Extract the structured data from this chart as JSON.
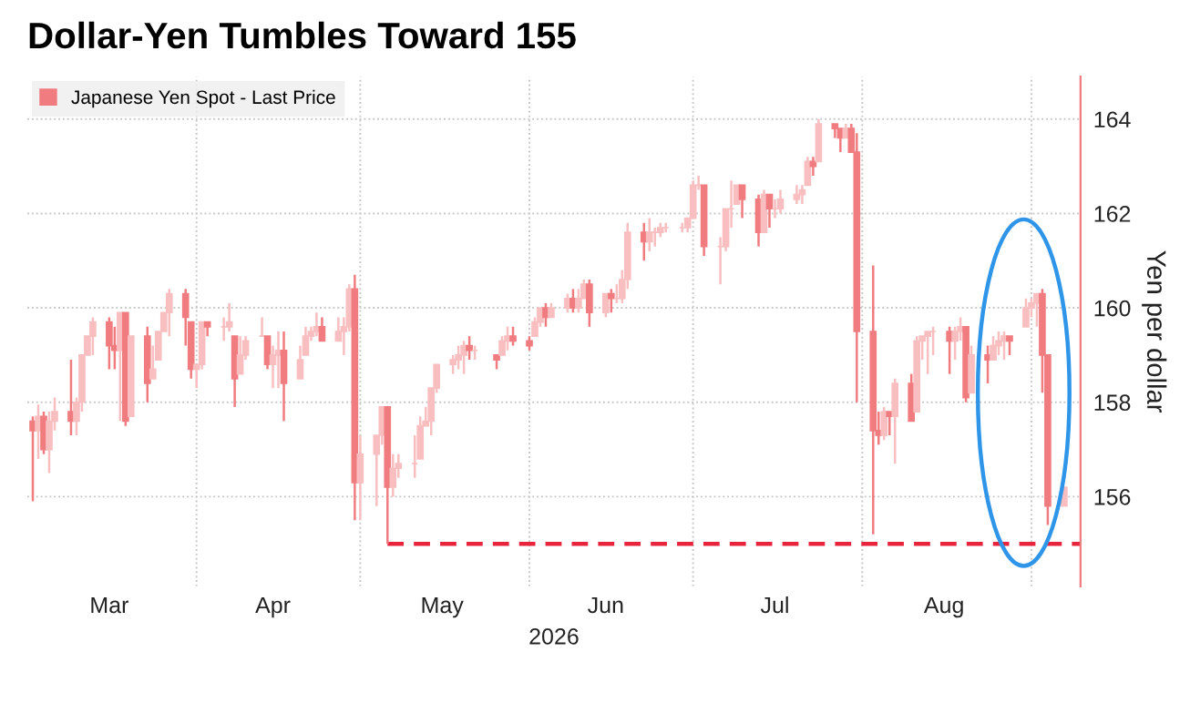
{
  "chart_data": {
    "type": "candlestick",
    "title": "Dollar-Yen Tumbles Toward 155",
    "xlabel": "2026",
    "ylabel": "Yen per dollar",
    "x": [
      "2026-03-02",
      "2026-03-03",
      "2026-03-04",
      "2026-03-05",
      "2026-03-06",
      "2026-03-09",
      "2026-03-10",
      "2026-03-11",
      "2026-03-12",
      "2026-03-13",
      "2026-03-16",
      "2026-03-17",
      "2026-03-18",
      "2026-03-19",
      "2026-03-20",
      "2026-03-23",
      "2026-03-24",
      "2026-03-25",
      "2026-03-26",
      "2026-03-27",
      "2026-03-30",
      "2026-03-31",
      "2026-04-01",
      "2026-04-02",
      "2026-04-03",
      "2026-04-06",
      "2026-04-07",
      "2026-04-08",
      "2026-04-09",
      "2026-04-10",
      "2026-04-13",
      "2026-04-14",
      "2026-04-15",
      "2026-04-16",
      "2026-04-17",
      "2026-04-20",
      "2026-04-21",
      "2026-04-22",
      "2026-04-23",
      "2026-04-24",
      "2026-04-27",
      "2026-04-28",
      "2026-04-29",
      "2026-04-30",
      "2026-05-01",
      "2026-05-04",
      "2026-05-05",
      "2026-05-06",
      "2026-05-07",
      "2026-05-08",
      "2026-05-11",
      "2026-05-12",
      "2026-05-13",
      "2026-05-14",
      "2026-05-15",
      "2026-05-18",
      "2026-05-19",
      "2026-05-20",
      "2026-05-21",
      "2026-05-22",
      "2026-05-26",
      "2026-05-27",
      "2026-05-28",
      "2026-05-29",
      "2026-06-01",
      "2026-06-02",
      "2026-06-03",
      "2026-06-04",
      "2026-06-05",
      "2026-06-08",
      "2026-06-09",
      "2026-06-10",
      "2026-06-11",
      "2026-06-12",
      "2026-06-15",
      "2026-06-16",
      "2026-06-17",
      "2026-06-18",
      "2026-06-19",
      "2026-06-22",
      "2026-06-23",
      "2026-06-24",
      "2026-06-25",
      "2026-06-26",
      "2026-06-29",
      "2026-06-30",
      "2026-07-01",
      "2026-07-02",
      "2026-07-03",
      "2026-07-06",
      "2026-07-07",
      "2026-07-08",
      "2026-07-09",
      "2026-07-10",
      "2026-07-13",
      "2026-07-14",
      "2026-07-15",
      "2026-07-16",
      "2026-07-17",
      "2026-07-20",
      "2026-07-21",
      "2026-07-22",
      "2026-07-23",
      "2026-07-24",
      "2026-07-27",
      "2026-07-28",
      "2026-07-29",
      "2026-07-30",
      "2026-07-31",
      "2026-08-03",
      "2026-08-04",
      "2026-08-05",
      "2026-08-06",
      "2026-08-07",
      "2026-08-10",
      "2026-08-11",
      "2026-08-12",
      "2026-08-13",
      "2026-08-14",
      "2026-08-17",
      "2026-08-18",
      "2026-08-19",
      "2026-08-20",
      "2026-08-21",
      "2026-08-24",
      "2026-08-25",
      "2026-08-26",
      "2026-08-27",
      "2026-08-28",
      "2026-08-31",
      "2026-09-01",
      "2026-09-02",
      "2026-09-03",
      "2026-09-04",
      "2026-09-07"
    ],
    "series": [
      {
        "name": "Japanese Yen Spot - Last Price",
        "color": "#f07c80",
        "colors": [
          "#f07c80",
          "#f8bec0",
          "#f07c80",
          "#f8bec0",
          "#f8bec0",
          "#f07c80",
          "#f8bec0",
          "#f8bec0",
          "#f8bec0",
          "#f8bec0",
          "#f07c80",
          "#f07c80",
          "#f8bec0",
          "#f07c80",
          "#f8bec0",
          "#f07c80",
          "#f8bec0",
          "#f8bec0",
          "#f8bec0",
          "#f8bec0",
          "#f07c80",
          "#f07c80",
          "#f8bec0",
          "#f8bec0",
          "#f07c80",
          "#f8bec0",
          "#f8bec0",
          "#f07c80",
          "#f8bec0",
          "#f8bec0",
          "#f8bec0",
          "#f07c80",
          "#f8bec0",
          "#f8bec0",
          "#f07c80",
          "#f8bec0",
          "#f8bec0",
          "#f8bec0",
          "#f8bec0",
          "#f07c80",
          "#f8bec0",
          "#f8bec0",
          "#f8bec0",
          "#f07c80",
          "#f8bec0",
          "#f8bec0",
          "#f8bec0",
          "#f07c80",
          "#f8bec0",
          "#f8bec0",
          "#f8bec0",
          "#f8bec0",
          "#f8bec0",
          "#f8bec0",
          "#f8bec0",
          "#f8bec0",
          "#f8bec0",
          "#f8bec0",
          "#f07c80",
          "#f8bec0",
          "#f07c80",
          "#f8bec0",
          "#f8bec0",
          "#f07c80",
          "#f07c80",
          "#f8bec0",
          "#f8bec0",
          "#f07c80",
          "#f8bec0",
          "#f8bec0",
          "#f07c80",
          "#f8bec0",
          "#f8bec0",
          "#f07c80",
          "#f8bec0",
          "#f07c80",
          "#f8bec0",
          "#f8bec0",
          "#f8bec0",
          "#f07c80",
          "#f8bec0",
          "#f8bec0",
          "#f8bec0",
          "#f8bec0",
          "#f8bec0",
          "#f8bec0",
          "#f8bec0",
          "#f8bec0",
          "#f07c80",
          "#f8bec0",
          "#f8bec0",
          "#f8bec0",
          "#f8bec0",
          "#f07c80",
          "#f07c80",
          "#f8bec0",
          "#f07c80",
          "#f8bec0",
          "#f8bec0",
          "#f8bec0",
          "#f8bec0",
          "#f8bec0",
          "#f07c80",
          "#f8bec0",
          "#f07c80",
          "#f07c80",
          "#f8bec0",
          "#f07c80",
          "#f07c80",
          "#f07c80",
          "#f07c80",
          "#f8bec0",
          "#f07c80",
          "#f8bec0",
          "#f07c80",
          "#f8bec0",
          "#f8bec0",
          "#f8bec0",
          "#f8bec0",
          "#f07c80",
          "#f8bec0",
          "#f8bec0",
          "#f07c80",
          "#f8bec0",
          "#f07c80",
          "#f8bec0",
          "#f8bec0",
          "#f8bec0",
          "#f07c80",
          "#f8bec0",
          "#f8bec0",
          "#f8bec0",
          "#f07c80",
          "#f07c80",
          "#f8bec0"
        ],
        "ohlc": [
          [
            157.6,
            157.7,
            155.9,
            157.4
          ],
          [
            157.4,
            157.95,
            156.8,
            157.7
          ],
          [
            157.7,
            157.8,
            156.9,
            157.0
          ],
          [
            157.0,
            157.8,
            156.5,
            157.6
          ],
          [
            157.6,
            158.1,
            157.4,
            157.8
          ],
          [
            157.8,
            158.9,
            157.3,
            157.6
          ],
          [
            157.6,
            158.1,
            157.3,
            158.0
          ],
          [
            158.0,
            159.0,
            157.8,
            159.0
          ],
          [
            159.0,
            159.4,
            159.0,
            159.4
          ],
          [
            159.4,
            159.8,
            159.0,
            159.7
          ],
          [
            159.7,
            159.8,
            158.7,
            159.2
          ],
          [
            159.2,
            159.6,
            158.7,
            159.1
          ],
          [
            159.1,
            159.9,
            157.6,
            159.9
          ],
          [
            159.9,
            159.9,
            157.5,
            157.6
          ],
          [
            157.7,
            159.4,
            157.7,
            159.4
          ],
          [
            159.4,
            159.6,
            158.0,
            158.4
          ],
          [
            158.5,
            159.2,
            158.5,
            158.7
          ],
          [
            158.9,
            159.5,
            158.9,
            159.5
          ],
          [
            159.5,
            159.9,
            159.5,
            159.9
          ],
          [
            159.9,
            160.4,
            159.4,
            160.3
          ],
          [
            160.3,
            160.4,
            159.2,
            159.8
          ],
          [
            159.7,
            159.7,
            158.5,
            158.7
          ],
          [
            158.7,
            158.8,
            158.3,
            158.8
          ],
          [
            158.8,
            159.7,
            158.7,
            159.7
          ],
          [
            159.7,
            159.7,
            159.4,
            159.6
          ],
          [
            159.6,
            159.8,
            159.3,
            159.6
          ],
          [
            159.6,
            160.1,
            159.5,
            159.7
          ],
          [
            159.4,
            159.4,
            157.9,
            158.5
          ],
          [
            158.6,
            159.4,
            158.6,
            159.0
          ],
          [
            159.0,
            159.4,
            158.9,
            159.3
          ],
          [
            159.4,
            159.8,
            159.4,
            159.4
          ],
          [
            159.4,
            159.4,
            158.7,
            158.8
          ],
          [
            158.8,
            159.2,
            158.3,
            159.0
          ],
          [
            159.0,
            159.5,
            158.3,
            159.1
          ],
          [
            159.1,
            159.5,
            157.6,
            158.4
          ],
          [
            158.5,
            159.2,
            158.5,
            158.9
          ],
          [
            159.0,
            159.6,
            159.0,
            159.4
          ],
          [
            159.4,
            159.6,
            159.3,
            159.5
          ],
          [
            159.5,
            159.9,
            159.4,
            159.6
          ],
          [
            159.6,
            159.8,
            159.3,
            159.3
          ],
          [
            159.3,
            159.8,
            159.3,
            159.5
          ],
          [
            159.5,
            159.8,
            159.0,
            159.6
          ],
          [
            159.6,
            160.5,
            159.5,
            160.4
          ],
          [
            160.4,
            160.7,
            155.5,
            156.3
          ],
          [
            156.3,
            157.3,
            155.5,
            156.9
          ],
          [
            156.9,
            157.3,
            155.8,
            157.3
          ],
          [
            157.3,
            157.9,
            157.1,
            157.9
          ],
          [
            157.9,
            157.9,
            155.0,
            156.2
          ],
          [
            156.2,
            156.9,
            156.0,
            156.6
          ],
          [
            156.6,
            156.9,
            156.4,
            156.7
          ],
          [
            156.7,
            157.3,
            156.4,
            156.7
          ],
          [
            156.8,
            157.7,
            156.8,
            157.5
          ],
          [
            157.5,
            157.9,
            157.5,
            157.6
          ],
          [
            157.6,
            158.3,
            157.3,
            158.3
          ],
          [
            158.3,
            158.8,
            158.2,
            158.8
          ],
          [
            158.8,
            159.0,
            158.6,
            158.9
          ],
          [
            158.9,
            159.2,
            158.7,
            159.0
          ],
          [
            159.0,
            159.3,
            158.6,
            159.2
          ],
          [
            159.2,
            159.4,
            158.9,
            159.1
          ],
          [
            159.1,
            159.2,
            158.9,
            159.1
          ],
          [
            159.0,
            159.0,
            158.7,
            158.9
          ],
          [
            159.0,
            159.4,
            159.0,
            159.3
          ],
          [
            159.3,
            159.6,
            159.1,
            159.4
          ],
          [
            159.4,
            159.6,
            159.2,
            159.3
          ],
          [
            159.3,
            159.4,
            159.1,
            159.2
          ],
          [
            159.4,
            159.8,
            159.4,
            159.7
          ],
          [
            159.7,
            160.0,
            159.6,
            160.0
          ],
          [
            160.0,
            160.1,
            159.6,
            159.8
          ],
          [
            159.8,
            160.1,
            159.8,
            160.0
          ],
          [
            160.0,
            160.3,
            159.9,
            160.2
          ],
          [
            160.2,
            160.4,
            159.9,
            160.0
          ],
          [
            160.0,
            160.4,
            159.9,
            160.2
          ],
          [
            160.2,
            160.6,
            160.2,
            160.5
          ],
          [
            160.5,
            160.6,
            159.6,
            159.9
          ],
          [
            159.9,
            160.3,
            159.8,
            160.3
          ],
          [
            160.3,
            160.4,
            159.9,
            160.2
          ],
          [
            160.2,
            160.5,
            160.1,
            160.2
          ],
          [
            160.2,
            160.8,
            160.1,
            160.6
          ],
          [
            160.6,
            161.8,
            160.4,
            161.6
          ],
          [
            161.6,
            161.8,
            161.0,
            161.4
          ],
          [
            161.4,
            161.9,
            161.2,
            161.6
          ],
          [
            161.6,
            161.7,
            161.3,
            161.6
          ],
          [
            161.6,
            161.8,
            161.5,
            161.7
          ],
          [
            161.7,
            161.8,
            161.6,
            161.7
          ],
          [
            161.7,
            161.8,
            161.6,
            161.7
          ],
          [
            161.7,
            161.9,
            161.6,
            161.9
          ],
          [
            161.9,
            162.7,
            161.9,
            162.6
          ],
          [
            162.6,
            162.8,
            162.5,
            162.6
          ],
          [
            162.6,
            162.6,
            161.1,
            161.3
          ],
          [
            161.3,
            161.5,
            160.5,
            161.3
          ],
          [
            161.3,
            162.1,
            161.2,
            162.1
          ],
          [
            162.1,
            162.7,
            161.7,
            162.1
          ],
          [
            162.2,
            162.6,
            162.2,
            162.6
          ],
          [
            162.6,
            162.6,
            161.9,
            162.3
          ],
          [
            162.3,
            162.4,
            161.3,
            161.6
          ],
          [
            161.6,
            162.5,
            161.6,
            162.4
          ],
          [
            162.4,
            162.4,
            161.7,
            162.1
          ],
          [
            162.1,
            162.3,
            161.9,
            162.1
          ],
          [
            162.1,
            162.5,
            162.0,
            162.3
          ],
          [
            162.3,
            162.6,
            162.2,
            162.4
          ],
          [
            162.4,
            162.6,
            162.2,
            162.5
          ],
          [
            162.6,
            163.2,
            162.6,
            163.1
          ],
          [
            163.1,
            163.2,
            162.8,
            163.0
          ],
          [
            163.1,
            164.0,
            163.1,
            163.9
          ],
          [
            163.9,
            163.9,
            163.6,
            163.8
          ],
          [
            163.8,
            163.8,
            163.3,
            163.6
          ],
          [
            163.6,
            163.9,
            163.6,
            163.8
          ],
          [
            163.8,
            163.9,
            163.3,
            163.3
          ],
          [
            163.3,
            163.7,
            158.0,
            159.5
          ],
          [
            159.5,
            160.9,
            155.2,
            157.4
          ],
          [
            157.4,
            157.8,
            157.1,
            157.3
          ],
          [
            157.3,
            157.9,
            157.2,
            157.8
          ],
          [
            157.8,
            157.8,
            157.3,
            157.7
          ],
          [
            157.7,
            158.5,
            156.7,
            158.4
          ],
          [
            158.4,
            158.6,
            157.6,
            157.6
          ],
          [
            157.8,
            159.4,
            157.8,
            159.3
          ],
          [
            159.3,
            159.4,
            158.9,
            159.4
          ],
          [
            159.4,
            159.5,
            158.6,
            159.5
          ],
          [
            159.5,
            159.6,
            159.0,
            159.5
          ],
          [
            159.5,
            159.6,
            158.6,
            159.3
          ],
          [
            159.3,
            159.6,
            158.9,
            159.5
          ],
          [
            159.5,
            159.8,
            159.3,
            159.6
          ],
          [
            159.6,
            159.6,
            158.0,
            158.1
          ],
          [
            158.2,
            159.2,
            158.2,
            159.0
          ],
          [
            159.0,
            159.2,
            158.4,
            158.9
          ],
          [
            158.9,
            159.4,
            158.9,
            159.2
          ],
          [
            159.2,
            159.5,
            159.0,
            159.3
          ],
          [
            159.3,
            159.5,
            158.9,
            159.4
          ],
          [
            159.4,
            159.4,
            159.0,
            159.3
          ],
          [
            159.6,
            160.2,
            159.6,
            160.0
          ],
          [
            160.0,
            160.2,
            159.8,
            160.1
          ],
          [
            160.1,
            160.3,
            159.6,
            160.3
          ],
          [
            160.3,
            160.4,
            158.2,
            159.0
          ],
          [
            159.0,
            159.0,
            155.4,
            155.8
          ],
          [
            155.8,
            156.2,
            155.8,
            156.2
          ]
        ]
      },
      {
        "type": "line",
        "color": "#e8243c",
        "line_style": "dashed",
        "x": [
          "2026-05-06",
          "2026-09-10"
        ],
        "values": [
          155,
          155
        ]
      }
    ],
    "xlim": [
      "2026-03-01",
      "2026-09-10"
    ],
    "xticks": [
      {
        "value": "2026-03-16",
        "label": "Mar"
      },
      {
        "value": "2026-04-15",
        "label": "Apr"
      },
      {
        "value": "2026-05-16",
        "label": "May"
      },
      {
        "value": "2026-06-15",
        "label": "Jun"
      },
      {
        "value": "2026-07-16",
        "label": "Jul"
      },
      {
        "value": "2026-08-16",
        "label": "Aug"
      },
      {
        "value": "2026-04-01",
        "label": null
      },
      {
        "value": "2026-05-01",
        "label": null
      },
      {
        "value": "2026-06-01",
        "label": null
      },
      {
        "value": "2026-07-01",
        "label": null
      },
      {
        "value": "2026-08-01",
        "label": null
      },
      {
        "value": "2026-09-01",
        "label": null
      }
    ],
    "ylim": [
      154.1,
      164.9
    ],
    "yticks": [
      156,
      158,
      160,
      162,
      164
    ],
    "grid": true,
    "legend": "top left"
  }
}
